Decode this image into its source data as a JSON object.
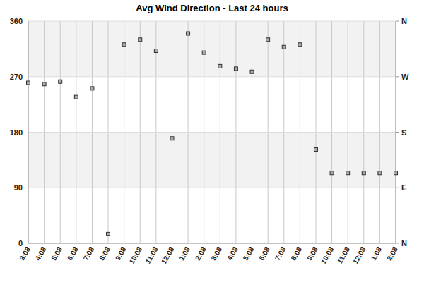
{
  "chart_data": {
    "type": "scatter",
    "title": "Avg Wind Direction - Last 24 hours",
    "categories": [
      "3:08",
      "4:08",
      "5:08",
      "6:08",
      "7:08",
      "8:08",
      "9:08",
      "10:08",
      "11:08",
      "12:08",
      "1:08",
      "2:08",
      "3:08",
      "4:08",
      "5:08",
      "6:08",
      "7:08",
      "8:08",
      "9:08",
      "10:08",
      "11:08",
      "12:08",
      "1:08",
      "2:08"
    ],
    "series": [
      {
        "color": "#333333",
        "marker": "square",
        "values": [
          260,
          258,
          262,
          237,
          251,
          15,
          322,
          330,
          312,
          170,
          340,
          309,
          287,
          283,
          278,
          330,
          318,
          322,
          152,
          114,
          114,
          114,
          114,
          114
        ]
      }
    ],
    "ylim": [
      0,
      360
    ],
    "yticks": [
      0,
      90,
      180,
      270,
      360
    ],
    "y2lim": [
      0,
      360
    ],
    "y2ticks": [
      {
        "value": 0,
        "label": "N"
      },
      {
        "value": 90,
        "label": "E"
      },
      {
        "value": 180,
        "label": "S"
      },
      {
        "value": 270,
        "label": "W"
      },
      {
        "value": 360,
        "label": "N"
      }
    ],
    "grid": true
  }
}
